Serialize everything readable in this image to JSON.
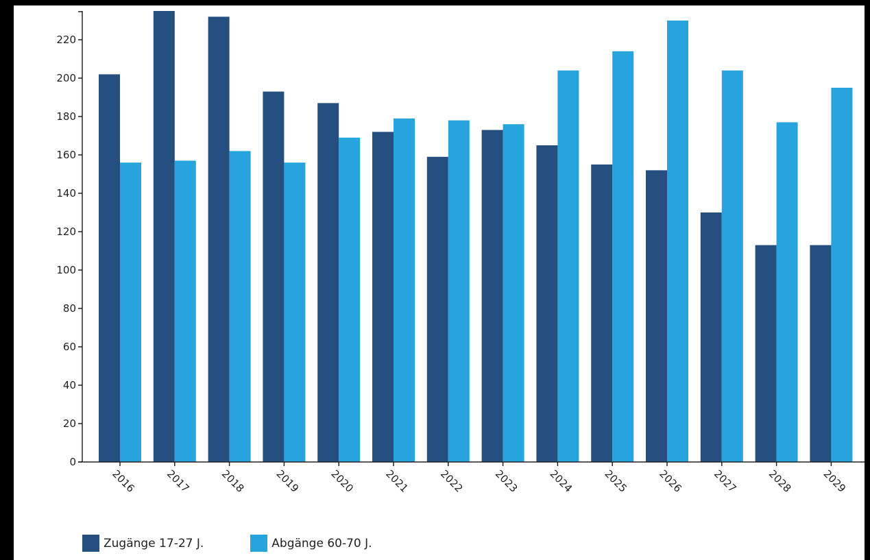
{
  "chart_data": {
    "type": "bar",
    "categories": [
      "2016",
      "2017",
      "2018",
      "2019",
      "2020",
      "2021",
      "2022",
      "2023",
      "2024",
      "2025",
      "2026",
      "2027",
      "2028",
      "2029"
    ],
    "series": [
      {
        "name": "Zugänge 17-27 J.",
        "color": "#254f7e",
        "values": [
          202,
          235,
          232,
          193,
          187,
          172,
          159,
          173,
          165,
          155,
          152,
          130,
          113,
          113
        ]
      },
      {
        "name": "Abgänge 60-70 J.",
        "color": "#27a4dc",
        "values": [
          156,
          157,
          162,
          156,
          169,
          179,
          178,
          176,
          204,
          214,
          230,
          204,
          177,
          195
        ]
      }
    ],
    "yticks": [
      0,
      20,
      40,
      60,
      80,
      100,
      120,
      140,
      160,
      180,
      200,
      220
    ],
    "ylim": [
      0,
      235
    ],
    "grid": false,
    "legend_position": "bottom-left"
  }
}
